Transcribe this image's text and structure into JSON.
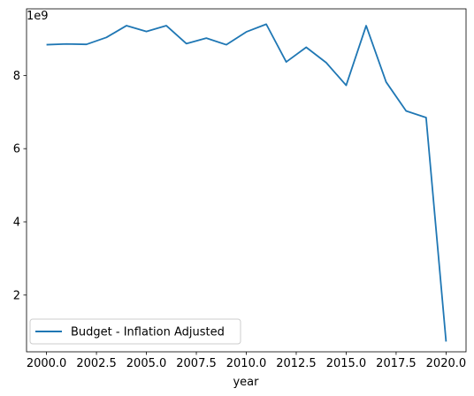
{
  "chart_data": {
    "type": "line",
    "title": "",
    "xlabel": "year",
    "ylabel": "",
    "y_offset_label": "1e9",
    "xlim": [
      1999.0,
      2021.0
    ],
    "ylim": [
      0.45,
      9.82
    ],
    "x_ticks": [
      2000.0,
      2002.5,
      2005.0,
      2007.5,
      2010.0,
      2012.5,
      2015.0,
      2017.5,
      2020.0
    ],
    "x_tick_labels": [
      "2000.0",
      "2002.5",
      "2005.0",
      "2007.5",
      "2010.0",
      "2012.5",
      "2015.0",
      "2017.5",
      "2020.0"
    ],
    "y_ticks": [
      2,
      4,
      6,
      8
    ],
    "y_tick_labels": [
      "2",
      "4",
      "6",
      "8"
    ],
    "grid": false,
    "legend_position": "lower-left",
    "series": [
      {
        "name": "Budget - Inflation Adjusted",
        "color": "#1f77b4",
        "x": [
          2000,
          2001,
          2002,
          2003,
          2004,
          2005,
          2006,
          2007,
          2008,
          2009,
          2010,
          2011,
          2012,
          2013,
          2014,
          2015,
          2016,
          2017,
          2018,
          2019,
          2020
        ],
        "y": [
          8.84,
          8.86,
          8.85,
          9.04,
          9.36,
          9.2,
          9.36,
          8.87,
          9.02,
          8.84,
          9.19,
          9.4,
          8.37,
          8.77,
          8.35,
          7.73,
          9.36,
          7.82,
          7.03,
          6.85,
          0.73
        ]
      }
    ]
  }
}
